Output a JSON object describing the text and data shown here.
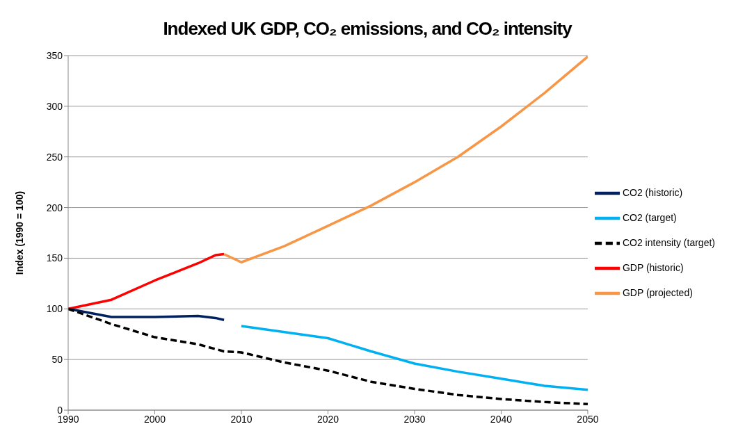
{
  "chart_data": {
    "type": "line",
    "title": "Indexed UK GDP, CO₂ emissions, and CO₂ intensity",
    "ylabel": "Index (1990 = 100)",
    "xlim": [
      1990,
      2050
    ],
    "xticks": [
      1990,
      2000,
      2010,
      2020,
      2030,
      2040,
      2050
    ],
    "ylim": [
      0,
      350
    ],
    "yticks": [
      0,
      50,
      100,
      150,
      200,
      250,
      300,
      350
    ],
    "grid": "y",
    "legend": "right",
    "marker": "none",
    "series": [
      {
        "name": "GDP (historic)",
        "color": "#ff0000",
        "x": [
          1990,
          1995,
          2000,
          2005,
          2007,
          2008
        ],
        "values": [
          100,
          109,
          128,
          145,
          153,
          154
        ]
      },
      {
        "name": "GDP (projected)",
        "color": "#f79646",
        "x": [
          2008,
          2010,
          2015,
          2020,
          2025,
          2030,
          2035,
          2040,
          2045,
          2050
        ],
        "values": [
          154,
          146,
          162,
          182,
          202,
          225,
          250,
          280,
          313,
          349
        ]
      },
      {
        "name": "CO2 (historic)",
        "color": "#002060",
        "x": [
          1990,
          1995,
          2000,
          2005,
          2007,
          2008
        ],
        "values": [
          100,
          92,
          92,
          93,
          91,
          89
        ]
      },
      {
        "name": "CO2 (target)",
        "color": "#00b0f0",
        "x": [
          2010,
          2015,
          2020,
          2025,
          2030,
          2035,
          2040,
          2045,
          2050
        ],
        "values": [
          83,
          77,
          71,
          58,
          46,
          38,
          31,
          24,
          20
        ]
      },
      {
        "name": "CO2 intensity (target)",
        "color": "#000000",
        "line_style": "dashed",
        "x": [
          1990,
          1995,
          2000,
          2005,
          2008,
          2010,
          2015,
          2020,
          2025,
          2030,
          2035,
          2040,
          2045,
          2050
        ],
        "values": [
          100,
          85,
          72,
          65,
          58,
          57,
          47,
          39,
          28,
          21,
          15,
          11,
          8,
          6
        ]
      }
    ]
  }
}
